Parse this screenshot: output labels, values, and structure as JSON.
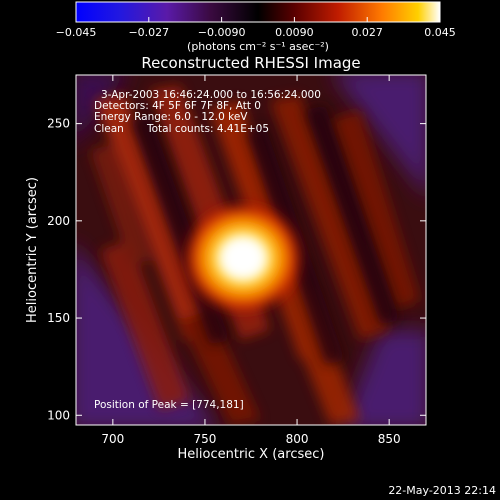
{
  "chart_data": {
    "type": "heatmap",
    "title": "Reconstructed RHESSI Image",
    "xlabel": "Heliocentric X (arcsec)",
    "ylabel": "Heliocentric Y (arcsec)",
    "xlim": [
      680,
      870
    ],
    "ylim": [
      95,
      275
    ],
    "x_ticks": [
      "700",
      "750",
      "800",
      "850"
    ],
    "y_ticks": [
      "100",
      "150",
      "200",
      "250"
    ],
    "colorbar": {
      "ticks": [
        "−0.045",
        "−0.027",
        "−0.0090",
        "0.0090",
        "0.027",
        "0.045"
      ],
      "range": [
        -0.045,
        0.045
      ],
      "unit_text": "(photons cm⁻² s⁻¹ asec⁻²)",
      "colormap": "rhessi-blue-purple-red-yellow-white"
    },
    "peak": {
      "x": 774,
      "y": 181
    },
    "annotations": {
      "time_range": "3-Apr-2003 16:46:24.000 to 16:56:24.000",
      "detectors": "Detectors: 4F 5F 6F 7F 8F, Att 0",
      "energy": "Energy Range: 6.0 - 12.0 keV",
      "clean": "Clean",
      "counts": "Total counts: 4.41E+05",
      "peak_position": "Position of Peak = [774,181]"
    },
    "grid": false
  },
  "footer_timestamp": "22-May-2013 22:14"
}
